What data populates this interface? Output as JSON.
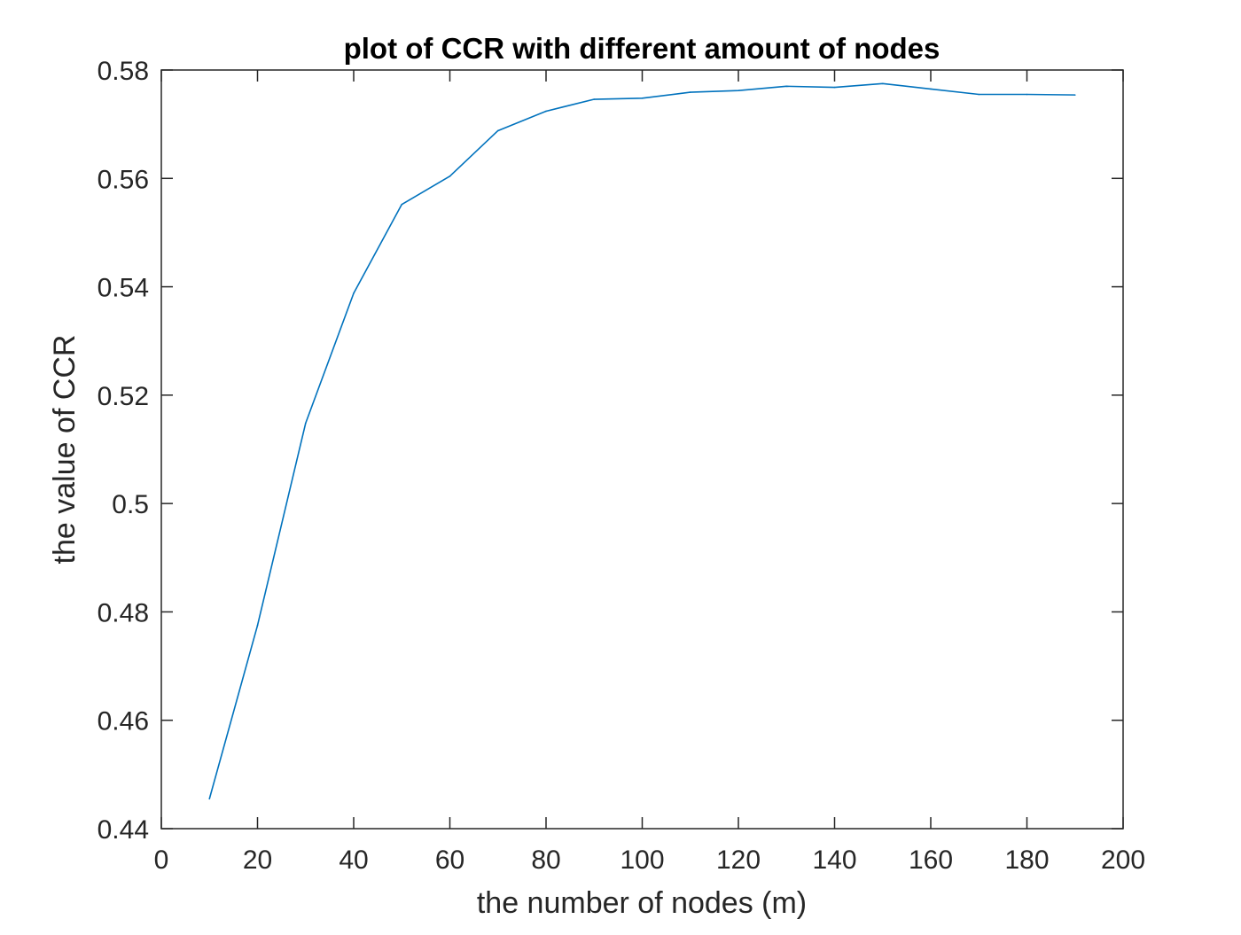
{
  "chart_data": {
    "type": "line",
    "title": "plot of CCR with different amount of nodes",
    "xlabel": "the number of nodes (m)",
    "ylabel": "the value of CCR",
    "xlim": [
      0,
      200
    ],
    "ylim": [
      0.44,
      0.58
    ],
    "xticks": [
      0,
      20,
      40,
      60,
      80,
      100,
      120,
      140,
      160,
      180,
      200
    ],
    "yticks": [
      0.44,
      0.46,
      0.48,
      0.5,
      0.52,
      0.54,
      0.56,
      0.58
    ],
    "xtick_labels": [
      "0",
      "20",
      "40",
      "60",
      "80",
      "100",
      "120",
      "140",
      "160",
      "180",
      "200"
    ],
    "ytick_labels": [
      "0.44",
      "0.46",
      "0.48",
      "0.5",
      "0.52",
      "0.54",
      "0.56",
      "0.58"
    ],
    "grid": false,
    "series": [
      {
        "color": "#0072BD",
        "x": [
          10,
          20,
          30,
          40,
          50,
          60,
          70,
          80,
          90,
          100,
          110,
          120,
          130,
          140,
          150,
          160,
          170,
          180,
          190
        ],
        "y": [
          0.4455,
          0.4775,
          0.5148,
          0.5388,
          0.5552,
          0.5604,
          0.5688,
          0.5724,
          0.5746,
          0.5748,
          0.5759,
          0.5762,
          0.577,
          0.5768,
          0.5775,
          0.5765,
          0.5755,
          0.5755,
          0.5754
        ]
      }
    ]
  }
}
